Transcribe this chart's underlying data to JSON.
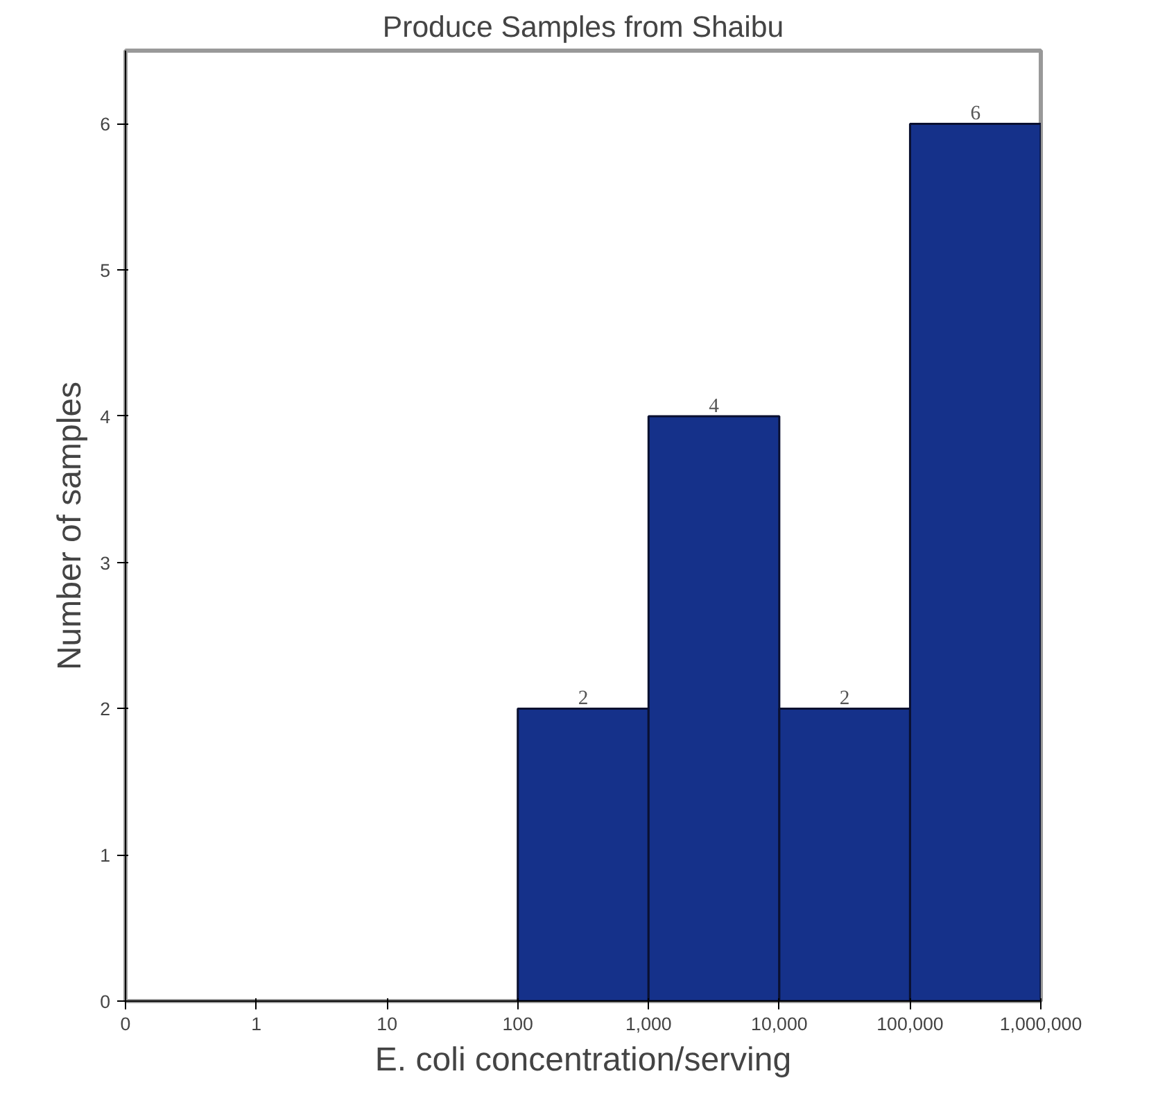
{
  "chart_data": {
    "type": "histogram",
    "title": "Produce Samples from Shaibu",
    "xlabel": "E. coli concentration/serving",
    "ylabel": "Number of samples",
    "bins": [
      100,
      1000,
      10000,
      100000,
      1000000
    ],
    "values": [
      2,
      4,
      2,
      6
    ],
    "color": "#15318a",
    "data_labels": true,
    "log": "x",
    "xlim": [
      0.1,
      1000000
    ],
    "xticks": [
      {
        "value": 0.1,
        "label": "0"
      },
      1,
      10,
      100,
      {
        "value": 1000,
        "label": "1,000"
      },
      {
        "value": 10000,
        "label": "10,000"
      },
      {
        "value": 100000,
        "label": "100,000"
      },
      {
        "value": 1000000,
        "label": "1,000,000"
      }
    ],
    "ylim": [
      0,
      6.5
    ],
    "yticks": [
      0,
      1,
      2,
      3,
      4,
      5,
      6
    ],
    "grid": false
  }
}
